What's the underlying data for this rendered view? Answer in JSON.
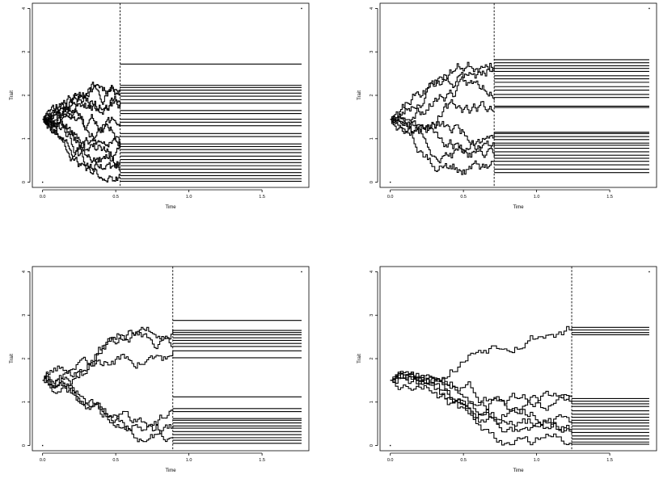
{
  "chart_data": [
    {
      "type": "line",
      "panel": "top-left",
      "xlabel": "Time",
      "ylabel": "Trait",
      "xlim": [
        -0.07,
        1.82
      ],
      "ylim": [
        -0.12,
        4.12
      ],
      "x_ticks": [
        {
          "v": 0,
          "label": "0.0"
        },
        {
          "v": 0.5,
          "label": "0.5"
        },
        {
          "v": 1,
          "label": "1.0"
        },
        {
          "v": 1.5,
          "label": "1.5"
        }
      ],
      "y_ticks": [
        {
          "v": 0,
          "label": "0"
        },
        {
          "v": 1,
          "label": "1"
        },
        {
          "v": 2,
          "label": "2"
        },
        {
          "v": 3,
          "label": "3"
        },
        {
          "v": 4,
          "label": "4"
        }
      ],
      "split_time": 0.53,
      "end_time": 1.77,
      "start_value": 1.45,
      "seed": 11,
      "num_lineages": 11,
      "tip_values": [
        2.72,
        2.23,
        2.18,
        2.12,
        2.05,
        1.98,
        1.9,
        1.82,
        1.65,
        1.58,
        1.45,
        1.38,
        1.3,
        1.12,
        1.05,
        0.88,
        0.82,
        0.75,
        0.68,
        0.6,
        0.52,
        0.45,
        0.38,
        0.3,
        0.22,
        0.15,
        0.08,
        0.02
      ]
    },
    {
      "type": "line",
      "panel": "top-right",
      "xlabel": "Time",
      "ylabel": "Trait",
      "xlim": [
        -0.07,
        1.82
      ],
      "ylim": [
        -0.12,
        4.12
      ],
      "x_ticks": [
        {
          "v": 0,
          "label": "0.0"
        },
        {
          "v": 0.5,
          "label": "0.5"
        },
        {
          "v": 1,
          "label": "1.0"
        },
        {
          "v": 1.5,
          "label": "1.5"
        }
      ],
      "y_ticks": [
        {
          "v": 0,
          "label": "0"
        },
        {
          "v": 1,
          "label": "1"
        },
        {
          "v": 2,
          "label": "2"
        },
        {
          "v": 3,
          "label": "3"
        },
        {
          "v": 4,
          "label": "4"
        }
      ],
      "split_time": 0.71,
      "end_time": 1.77,
      "start_value": 1.45,
      "seed": 23,
      "num_lineages": 8,
      "tip_values": [
        2.82,
        2.75,
        2.68,
        2.62,
        2.55,
        2.45,
        2.38,
        2.3,
        2.2,
        2.12,
        2.02,
        1.95,
        1.75,
        1.72,
        1.15,
        1.12,
        1.05,
        0.98,
        0.9,
        0.85,
        0.78,
        0.7,
        0.62,
        0.55,
        0.48,
        0.4,
        0.3,
        0.22
      ]
    },
    {
      "type": "line",
      "panel": "bottom-left",
      "xlabel": "Time",
      "ylabel": "Trait",
      "xlim": [
        -0.07,
        1.82
      ],
      "ylim": [
        -0.12,
        4.12
      ],
      "x_ticks": [
        {
          "v": 0,
          "label": "0.0"
        },
        {
          "v": 0.5,
          "label": "0.5"
        },
        {
          "v": 1,
          "label": "1.0"
        },
        {
          "v": 1.5,
          "label": "1.5"
        }
      ],
      "y_ticks": [
        {
          "v": 0,
          "label": "0"
        },
        {
          "v": 1,
          "label": "1"
        },
        {
          "v": 2,
          "label": "2"
        },
        {
          "v": 3,
          "label": "3"
        },
        {
          "v": 4,
          "label": "4"
        }
      ],
      "split_time": 0.89,
      "end_time": 1.77,
      "start_value": 1.5,
      "seed": 37,
      "num_lineages": 6,
      "tip_values": [
        2.88,
        2.65,
        2.6,
        2.55,
        2.48,
        2.42,
        2.35,
        2.28,
        2.18,
        2.02,
        1.12,
        0.85,
        0.78,
        0.62,
        0.58,
        0.52,
        0.45,
        0.4,
        0.32,
        0.25,
        0.18,
        0.12,
        0.05
      ]
    },
    {
      "type": "line",
      "panel": "bottom-right",
      "xlabel": "Time",
      "ylabel": "Trait",
      "xlim": [
        -0.07,
        1.82
      ],
      "ylim": [
        -0.12,
        4.12
      ],
      "x_ticks": [
        {
          "v": 0,
          "label": "0.0"
        },
        {
          "v": 0.5,
          "label": "0.5"
        },
        {
          "v": 1,
          "label": "1.0"
        },
        {
          "v": 1.5,
          "label": "1.5"
        }
      ],
      "y_ticks": [
        {
          "v": 0,
          "label": "0"
        },
        {
          "v": 1,
          "label": "1"
        },
        {
          "v": 2,
          "label": "2"
        },
        {
          "v": 3,
          "label": "3"
        },
        {
          "v": 4,
          "label": "4"
        }
      ],
      "split_time": 1.24,
      "end_time": 1.77,
      "start_value": 1.5,
      "seed": 53,
      "num_lineages": 7,
      "tip_values": [
        2.72,
        2.66,
        2.6,
        2.55,
        1.08,
        1.02,
        0.96,
        0.9,
        0.8,
        0.72,
        0.65,
        0.58,
        0.52,
        0.45,
        0.38,
        0.3,
        0.22,
        0.15,
        0.08,
        0.03
      ]
    }
  ]
}
